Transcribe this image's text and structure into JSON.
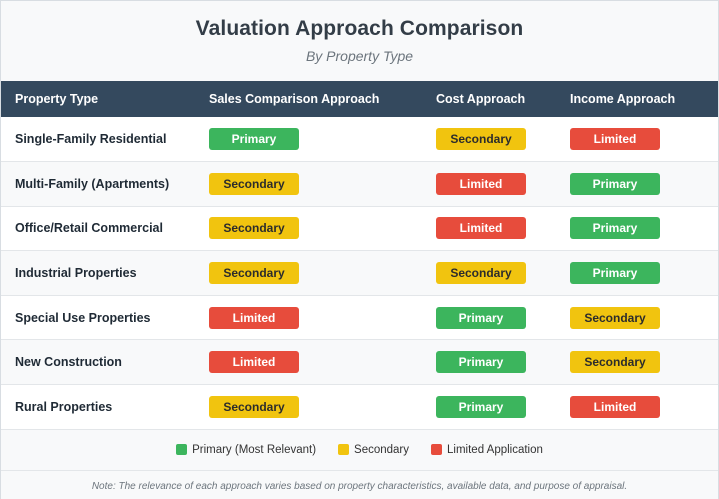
{
  "header": {
    "title": "Valuation Approach Comparison",
    "subtitle": "By Property Type"
  },
  "table": {
    "columns": [
      "Property Type",
      "Sales Comparison Approach",
      "Cost Approach",
      "Income Approach"
    ],
    "rows": [
      {
        "property": "Single-Family Residential",
        "sales": "Primary",
        "cost": "Secondary",
        "income": "Limited"
      },
      {
        "property": "Multi-Family (Apartments)",
        "sales": "Secondary",
        "cost": "Limited",
        "income": "Primary"
      },
      {
        "property": "Office/Retail Commercial",
        "sales": "Secondary",
        "cost": "Limited",
        "income": "Primary"
      },
      {
        "property": "Industrial Properties",
        "sales": "Secondary",
        "cost": "Secondary",
        "income": "Primary"
      },
      {
        "property": "Special Use Properties",
        "sales": "Limited",
        "cost": "Primary",
        "income": "Secondary"
      },
      {
        "property": "New Construction",
        "sales": "Limited",
        "cost": "Primary",
        "income": "Secondary"
      },
      {
        "property": "Rural Properties",
        "sales": "Secondary",
        "cost": "Primary",
        "income": "Limited"
      }
    ]
  },
  "legend": [
    {
      "label": "Primary (Most Relevant)",
      "color": "#3cb55d"
    },
    {
      "label": "Secondary",
      "color": "#f1c40f"
    },
    {
      "label": "Limited Application",
      "color": "#e74c3c"
    }
  ],
  "colors": {
    "header_bg": "#34495e",
    "primary": "#3cb55d",
    "secondary": "#f1c40f",
    "limited": "#e74c3c"
  },
  "note": "Note: The relevance of each approach varies based on property characteristics, available data, and purpose of appraisal."
}
